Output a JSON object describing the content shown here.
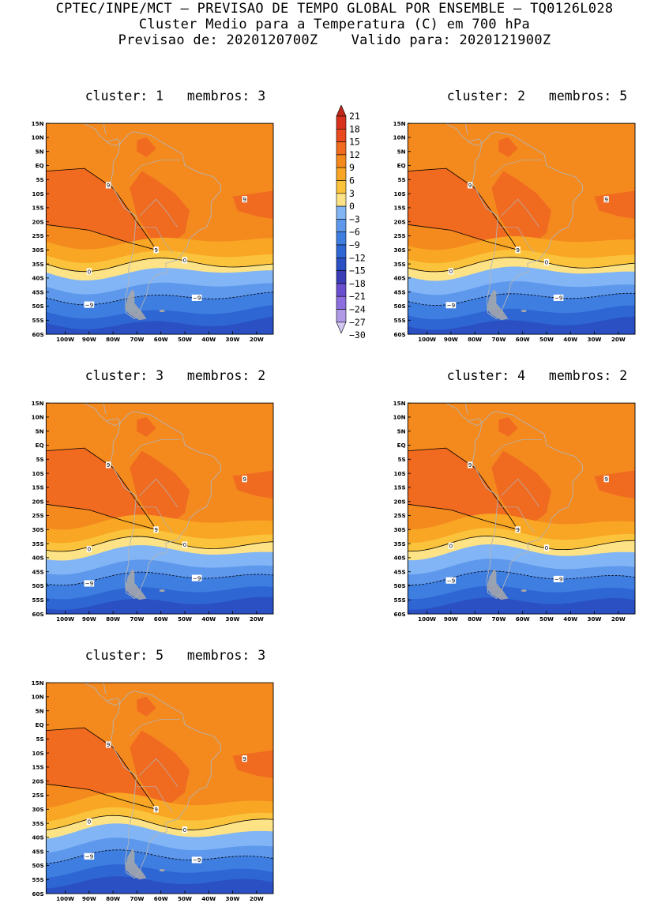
{
  "header": {
    "line1": "CPTEC/INPE/MCT — PREVISAO DE TEMPO GLOBAL POR ENSEMBLE — TQ0126L028",
    "line2": "Cluster Medio para a Temperatura (C) em 700 hPa",
    "line3": "Previsao de: 2020120700Z    Valido para: 2020121900Z"
  },
  "axes": {
    "lat_ticks": [
      "15N",
      "10N",
      "5N",
      "EQ",
      "5S",
      "10S",
      "15S",
      "20S",
      "25S",
      "30S",
      "35S",
      "40S",
      "45S",
      "50S",
      "55S",
      "60S"
    ],
    "lon_ticks": [
      "100W",
      "90W",
      "80W",
      "70W",
      "60W",
      "50W",
      "40W",
      "30W",
      "20W"
    ]
  },
  "legend": {
    "labels": [
      "21",
      "18",
      "15",
      "12",
      "9",
      "6",
      "3",
      "0",
      "-3",
      "-6",
      "-9",
      "-12",
      "-15",
      "-18",
      "-21",
      "-24",
      "-27",
      "-30"
    ],
    "colors": [
      "#c0281c",
      "#d8321e",
      "#ea4a1f",
      "#f06a20",
      "#f4891e",
      "#f8a624",
      "#fbc23c",
      "#fde386",
      "#82b5f5",
      "#5e98ec",
      "#3e7ee0",
      "#2e66d4",
      "#2a50c4",
      "#3a3cb8",
      "#6a4ed0",
      "#8c6ee0",
      "#b09ae8",
      "#d4c8f2"
    ]
  },
  "panels": [
    {
      "title": "cluster: 1   membros: 3"
    },
    {
      "title": "cluster: 2   membros: 5"
    },
    {
      "title": "cluster: 3   membros: 2"
    },
    {
      "title": "cluster: 4   membros: 2"
    },
    {
      "title": "cluster: 5   membros: 3"
    }
  ],
  "contour_labels": {
    "nine": "9",
    "zero": "0",
    "minus_nine": "-9"
  }
}
